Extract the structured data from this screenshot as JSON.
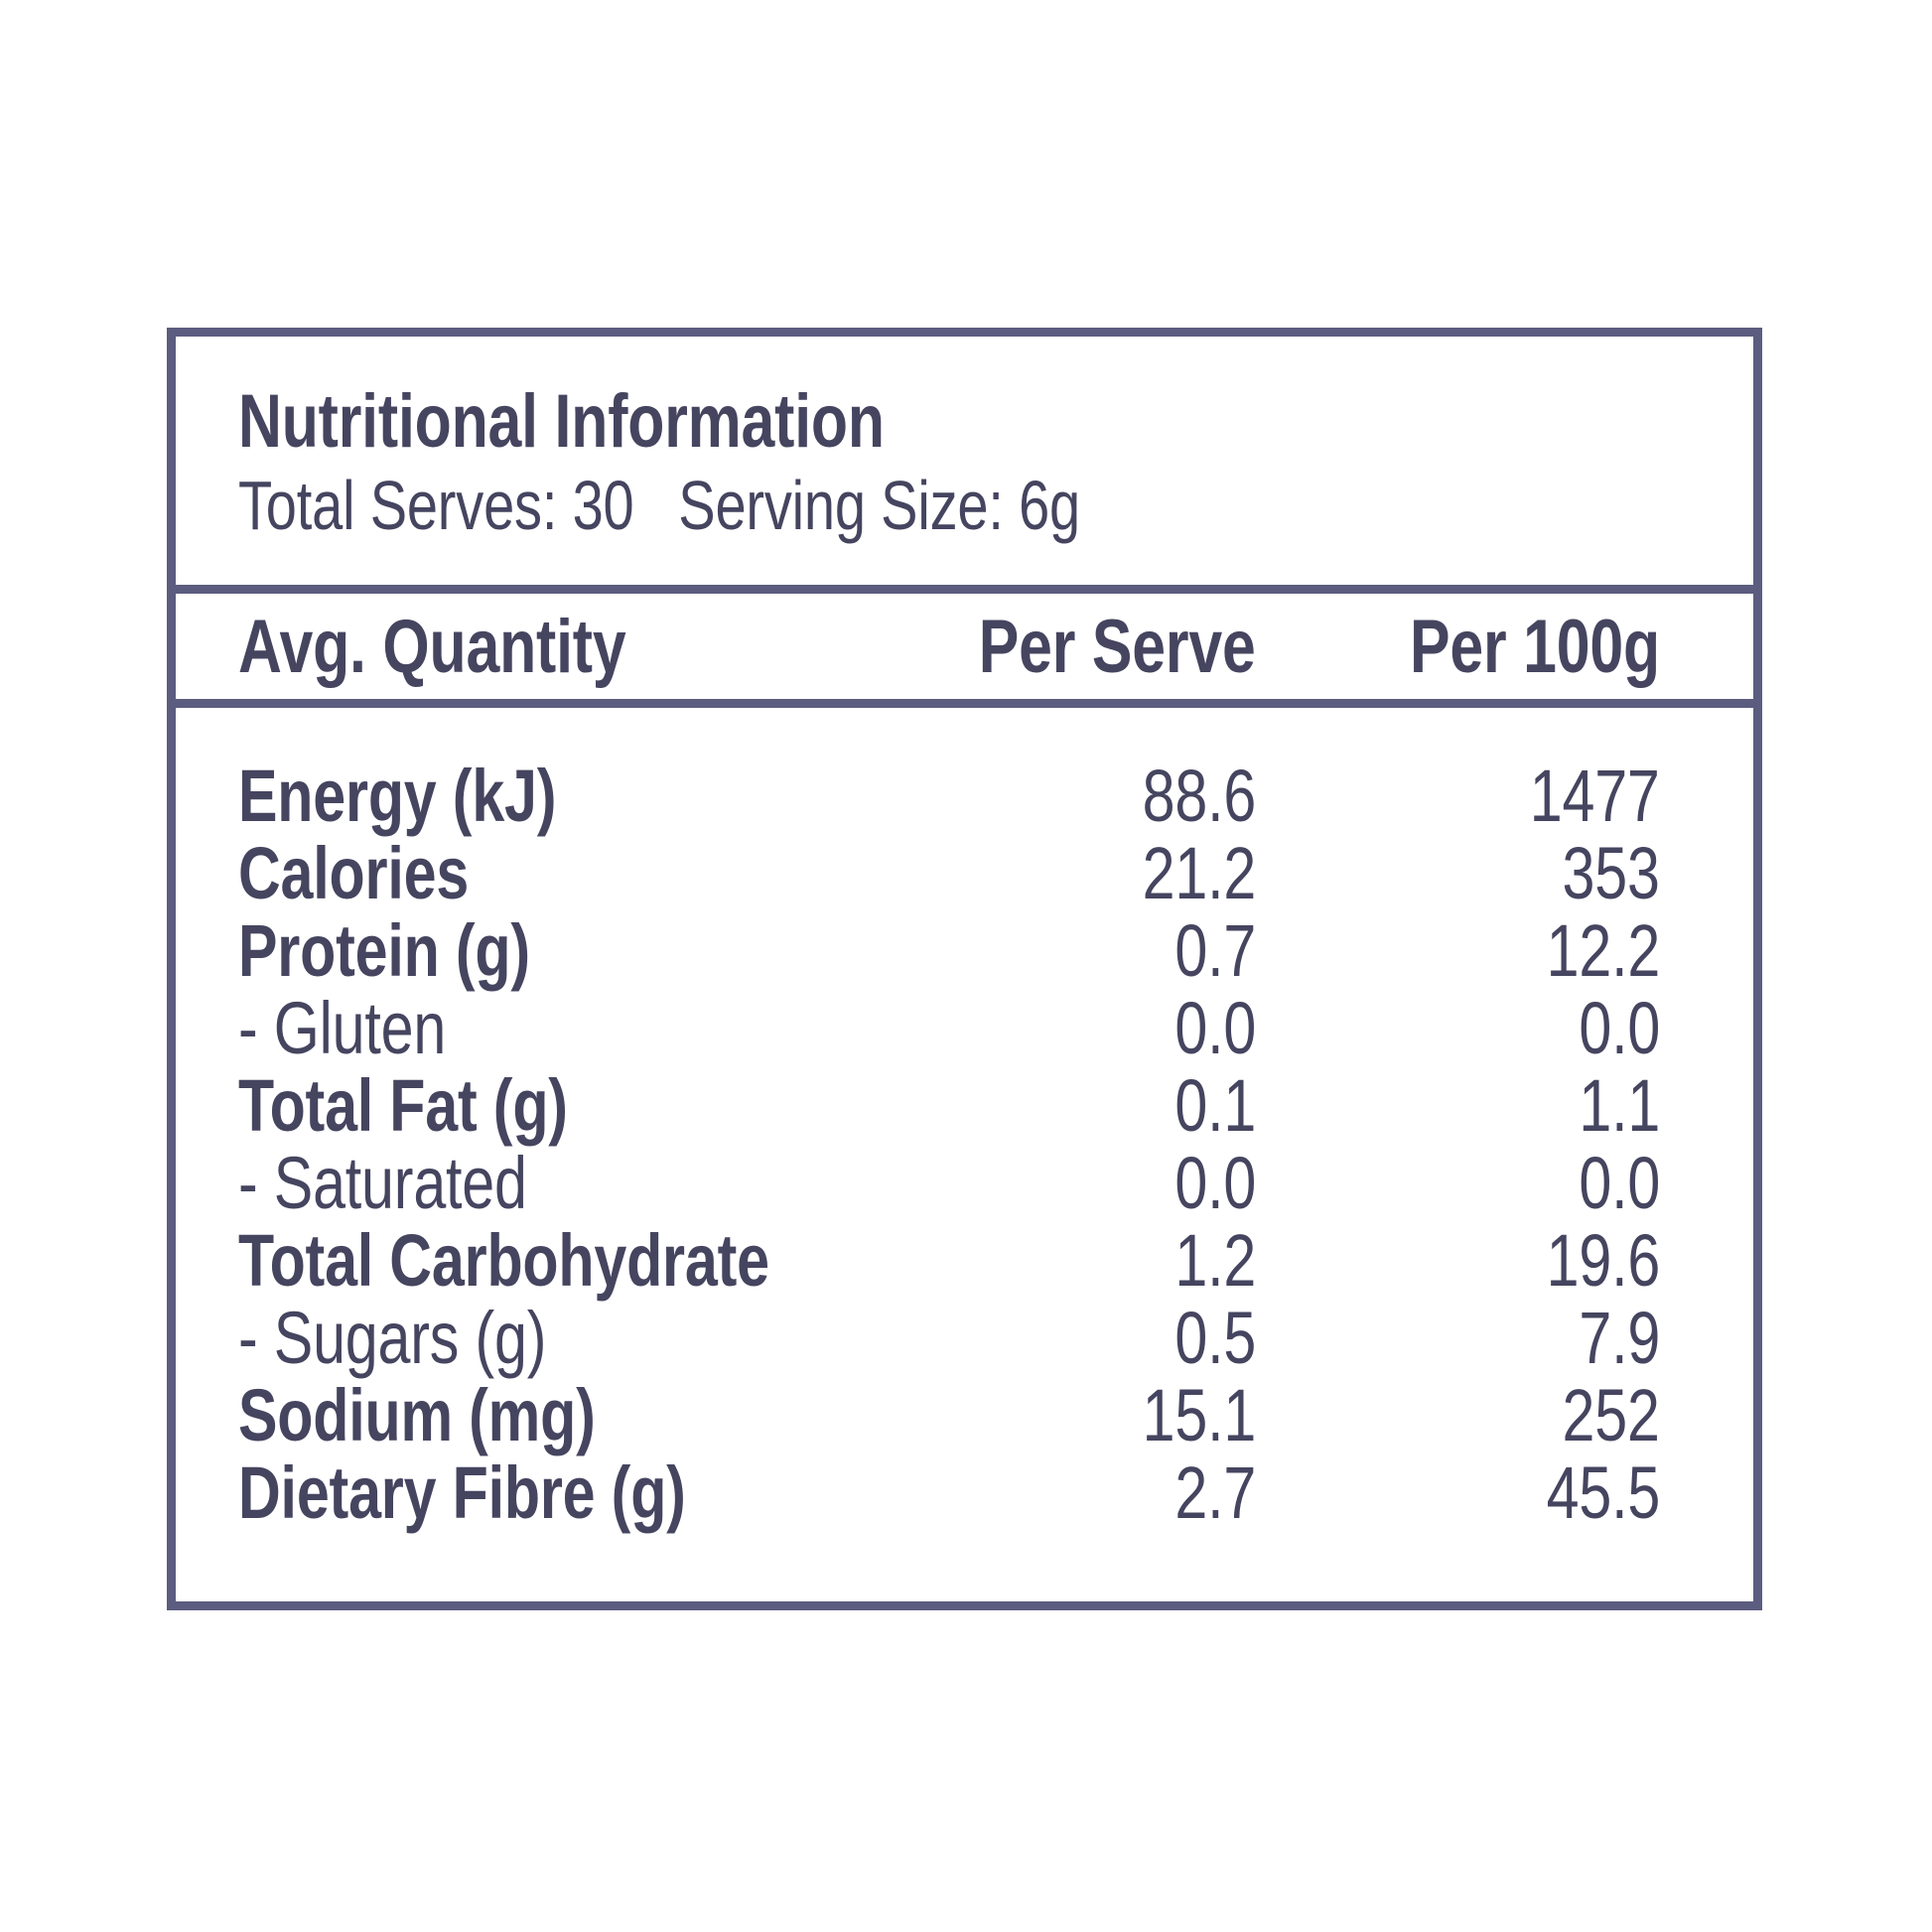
{
  "panel": {
    "title": "Nutritional Information",
    "total_serves_label": "Total Serves:",
    "total_serves_value": "30",
    "serving_size_label": "Serving Size:",
    "serving_size_value": "6g"
  },
  "table": {
    "columns": [
      "Avg. Quantity",
      "Per Serve",
      "Per 100g"
    ],
    "rows": [
      {
        "label": "Energy (kJ)",
        "per_serve": "88.6",
        "per_100g": "1477",
        "sub": false
      },
      {
        "label": "Calories",
        "per_serve": "21.2",
        "per_100g": "353",
        "sub": false
      },
      {
        "label": "Protein (g)",
        "per_serve": "0.7",
        "per_100g": "12.2",
        "sub": false
      },
      {
        "label": "- Gluten",
        "per_serve": "0.0",
        "per_100g": "0.0",
        "sub": true
      },
      {
        "label": "Total Fat (g)",
        "per_serve": "0.1",
        "per_100g": "1.1",
        "sub": false
      },
      {
        "label": "- Saturated",
        "per_serve": "0.0",
        "per_100g": "0.0",
        "sub": true
      },
      {
        "label": "Total Carbohydrate",
        "per_serve": "1.2",
        "per_100g": "19.6",
        "sub": false
      },
      {
        "label": "- Sugars (g)",
        "per_serve": "0.5",
        "per_100g": "7.9",
        "sub": true
      },
      {
        "label": "Sodium (mg)",
        "per_serve": "15.1",
        "per_100g": "252",
        "sub": false
      },
      {
        "label": "Dietary Fibre (g)",
        "per_serve": "2.7",
        "per_100g": "45.5",
        "sub": false
      }
    ]
  },
  "colors": {
    "panel_border": "#5c5c80",
    "text": "#454560",
    "background": "#ffffff"
  }
}
